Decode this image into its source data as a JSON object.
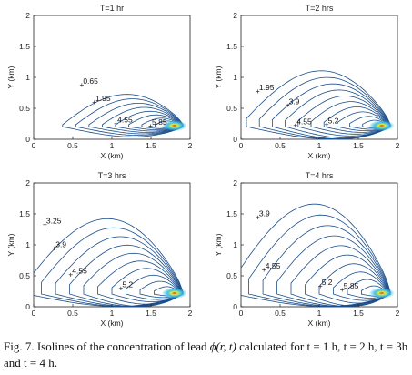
{
  "chart_data": [
    {
      "type": "contour",
      "title": "T=1 hr",
      "xlabel": "X (km)",
      "ylabel": "Y (km)",
      "xlim": [
        0,
        2
      ],
      "ylim": [
        0,
        2
      ],
      "xticks": [
        0,
        0.5,
        1,
        1.5,
        2
      ],
      "yticks": [
        0,
        0.5,
        1,
        1.5,
        2
      ],
      "source": {
        "x": 1.8,
        "y": 0.22
      },
      "contour_labels": [
        {
          "text": "0.65",
          "x": 0.62,
          "y": 0.88
        },
        {
          "text": "1.95",
          "x": 0.78,
          "y": 0.6
        },
        {
          "text": "4.55",
          "x": 1.06,
          "y": 0.26
        },
        {
          "text": "5.85",
          "x": 1.5,
          "y": 0.22
        }
      ]
    },
    {
      "type": "contour",
      "title": "T=2 hrs",
      "xlabel": "X (km)",
      "ylabel": "Y (km)",
      "xlim": [
        0,
        2
      ],
      "ylim": [
        0,
        2
      ],
      "xticks": [
        0,
        0.5,
        1,
        1.5,
        2
      ],
      "yticks": [
        0,
        0.5,
        1,
        1.5,
        2
      ],
      "source": {
        "x": 1.8,
        "y": 0.22
      },
      "contour_labels": [
        {
          "text": "1.95",
          "x": 0.22,
          "y": 0.78
        },
        {
          "text": "3.9",
          "x": 0.6,
          "y": 0.55
        },
        {
          "text": "4.55",
          "x": 0.7,
          "y": 0.23
        },
        {
          "text": "5.2",
          "x": 1.1,
          "y": 0.24
        }
      ]
    },
    {
      "type": "contour",
      "title": "T=3 hrs",
      "xlabel": "X (km)",
      "ylabel": "Y (km)",
      "xlim": [
        0,
        2
      ],
      "ylim": [
        0,
        2
      ],
      "xticks": [
        0,
        0.5,
        1,
        1.5,
        2
      ],
      "yticks": [
        0,
        0.5,
        1,
        1.5,
        2
      ],
      "source": {
        "x": 1.8,
        "y": 0.22
      },
      "contour_labels": [
        {
          "text": "3.25",
          "x": 0.15,
          "y": 1.33
        },
        {
          "text": "3.9",
          "x": 0.27,
          "y": 0.95
        },
        {
          "text": "4.55",
          "x": 0.48,
          "y": 0.52
        },
        {
          "text": "5.2",
          "x": 1.12,
          "y": 0.3
        }
      ]
    },
    {
      "type": "contour",
      "title": "T=4 hrs",
      "xlabel": "X (km)",
      "ylabel": "Y (km)",
      "xlim": [
        0,
        2
      ],
      "ylim": [
        0,
        2
      ],
      "xticks": [
        0,
        0.5,
        1,
        1.5,
        2
      ],
      "yticks": [
        0,
        0.5,
        1,
        1.5,
        2
      ],
      "source": {
        "x": 1.8,
        "y": 0.22
      },
      "contour_labels": [
        {
          "text": "3.9",
          "x": 0.22,
          "y": 1.45
        },
        {
          "text": "4.55",
          "x": 0.3,
          "y": 0.6
        },
        {
          "text": "5.2",
          "x": 1.02,
          "y": 0.34
        },
        {
          "text": "5.85",
          "x": 1.3,
          "y": 0.28
        }
      ]
    }
  ],
  "caption": {
    "fig_label": "Fig. 7.",
    "text_before_symbol": " Isolines of the concentration of lead ",
    "symbol": "ϕ(r, t)",
    "text_after_symbol": " calculated for t = 1 h, t = 2 h, t = 3h and t = 4 h."
  },
  "colors": {
    "contour": "#1a4e8c",
    "axis": "#222222",
    "hot_core": "#e8e83a",
    "hot_mid": "#3ec1e8"
  }
}
